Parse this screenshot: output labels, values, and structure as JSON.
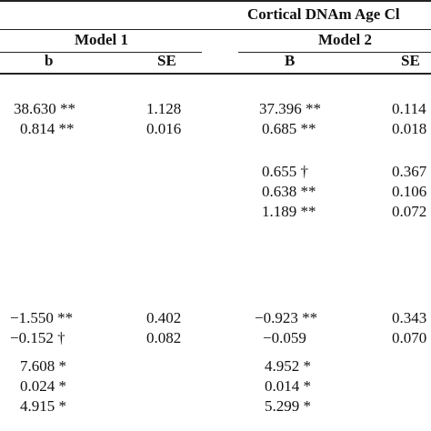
{
  "table": {
    "super_header": "Cortical DNAm Age Cl",
    "model1": {
      "title": "Model 1",
      "col_b": "b",
      "col_se": "SE",
      "rows": [
        {
          "b": "38.630 **",
          "se": "1.128"
        },
        {
          "b": "0.814 **",
          "se": "0.016"
        },
        {
          "b": "−1.550 **",
          "se": "0.402"
        },
        {
          "b": "−0.152 †",
          "se": "0.082"
        },
        {
          "b": "7.608 *",
          "se": ""
        },
        {
          "b": "0.024 *",
          "se": ""
        },
        {
          "b": "4.915 *",
          "se": ""
        }
      ]
    },
    "model2": {
      "title": "Model 2",
      "col_b": "B",
      "col_se": "SE",
      "rows": [
        {
          "b": "37.396 **",
          "se": "0.114"
        },
        {
          "b": "0.685 **",
          "se": "0.018"
        },
        {
          "b": "0.655 †",
          "se": "0.367"
        },
        {
          "b": "0.638 **",
          "se": "0.106"
        },
        {
          "b": "1.189 **",
          "se": "0.072"
        },
        {
          "b": "−0.923 **",
          "se": "0.343"
        },
        {
          "b": "−0.059",
          "se": "0.070"
        },
        {
          "b": "4.952 *",
          "se": ""
        },
        {
          "b": "0.014 *",
          "se": ""
        },
        {
          "b": "5.299 *",
          "se": ""
        }
      ]
    }
  }
}
